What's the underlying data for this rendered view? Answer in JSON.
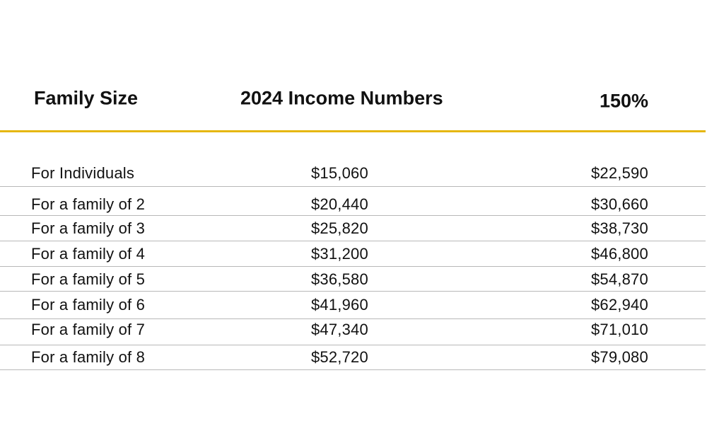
{
  "header": {
    "family_size": "Family Size",
    "income": "2024 Income Numbers",
    "percent": "150%"
  },
  "accent_color": "#e6b711",
  "rows": [
    {
      "label": "For Individuals",
      "income": "$15,060",
      "pct150": "$22,590"
    },
    {
      "label": "For a family of 2",
      "income": "$20,440",
      "pct150": "$30,660"
    },
    {
      "label": "For a family of 3",
      "income": "$25,820",
      "pct150": "$38,730"
    },
    {
      "label": "For a family of 4",
      "income": "$31,200",
      "pct150": "$46,800"
    },
    {
      "label": "For a family of 5",
      "income": "$36,580",
      "pct150": "$54,870"
    },
    {
      "label": "For a family of 6",
      "income": "$41,960",
      "pct150": "$62,940"
    },
    {
      "label": "For a family of 7",
      "income": "$47,340",
      "pct150": "$71,010"
    },
    {
      "label": "For a family of 8",
      "income": "$52,720",
      "pct150": "$79,080"
    }
  ]
}
